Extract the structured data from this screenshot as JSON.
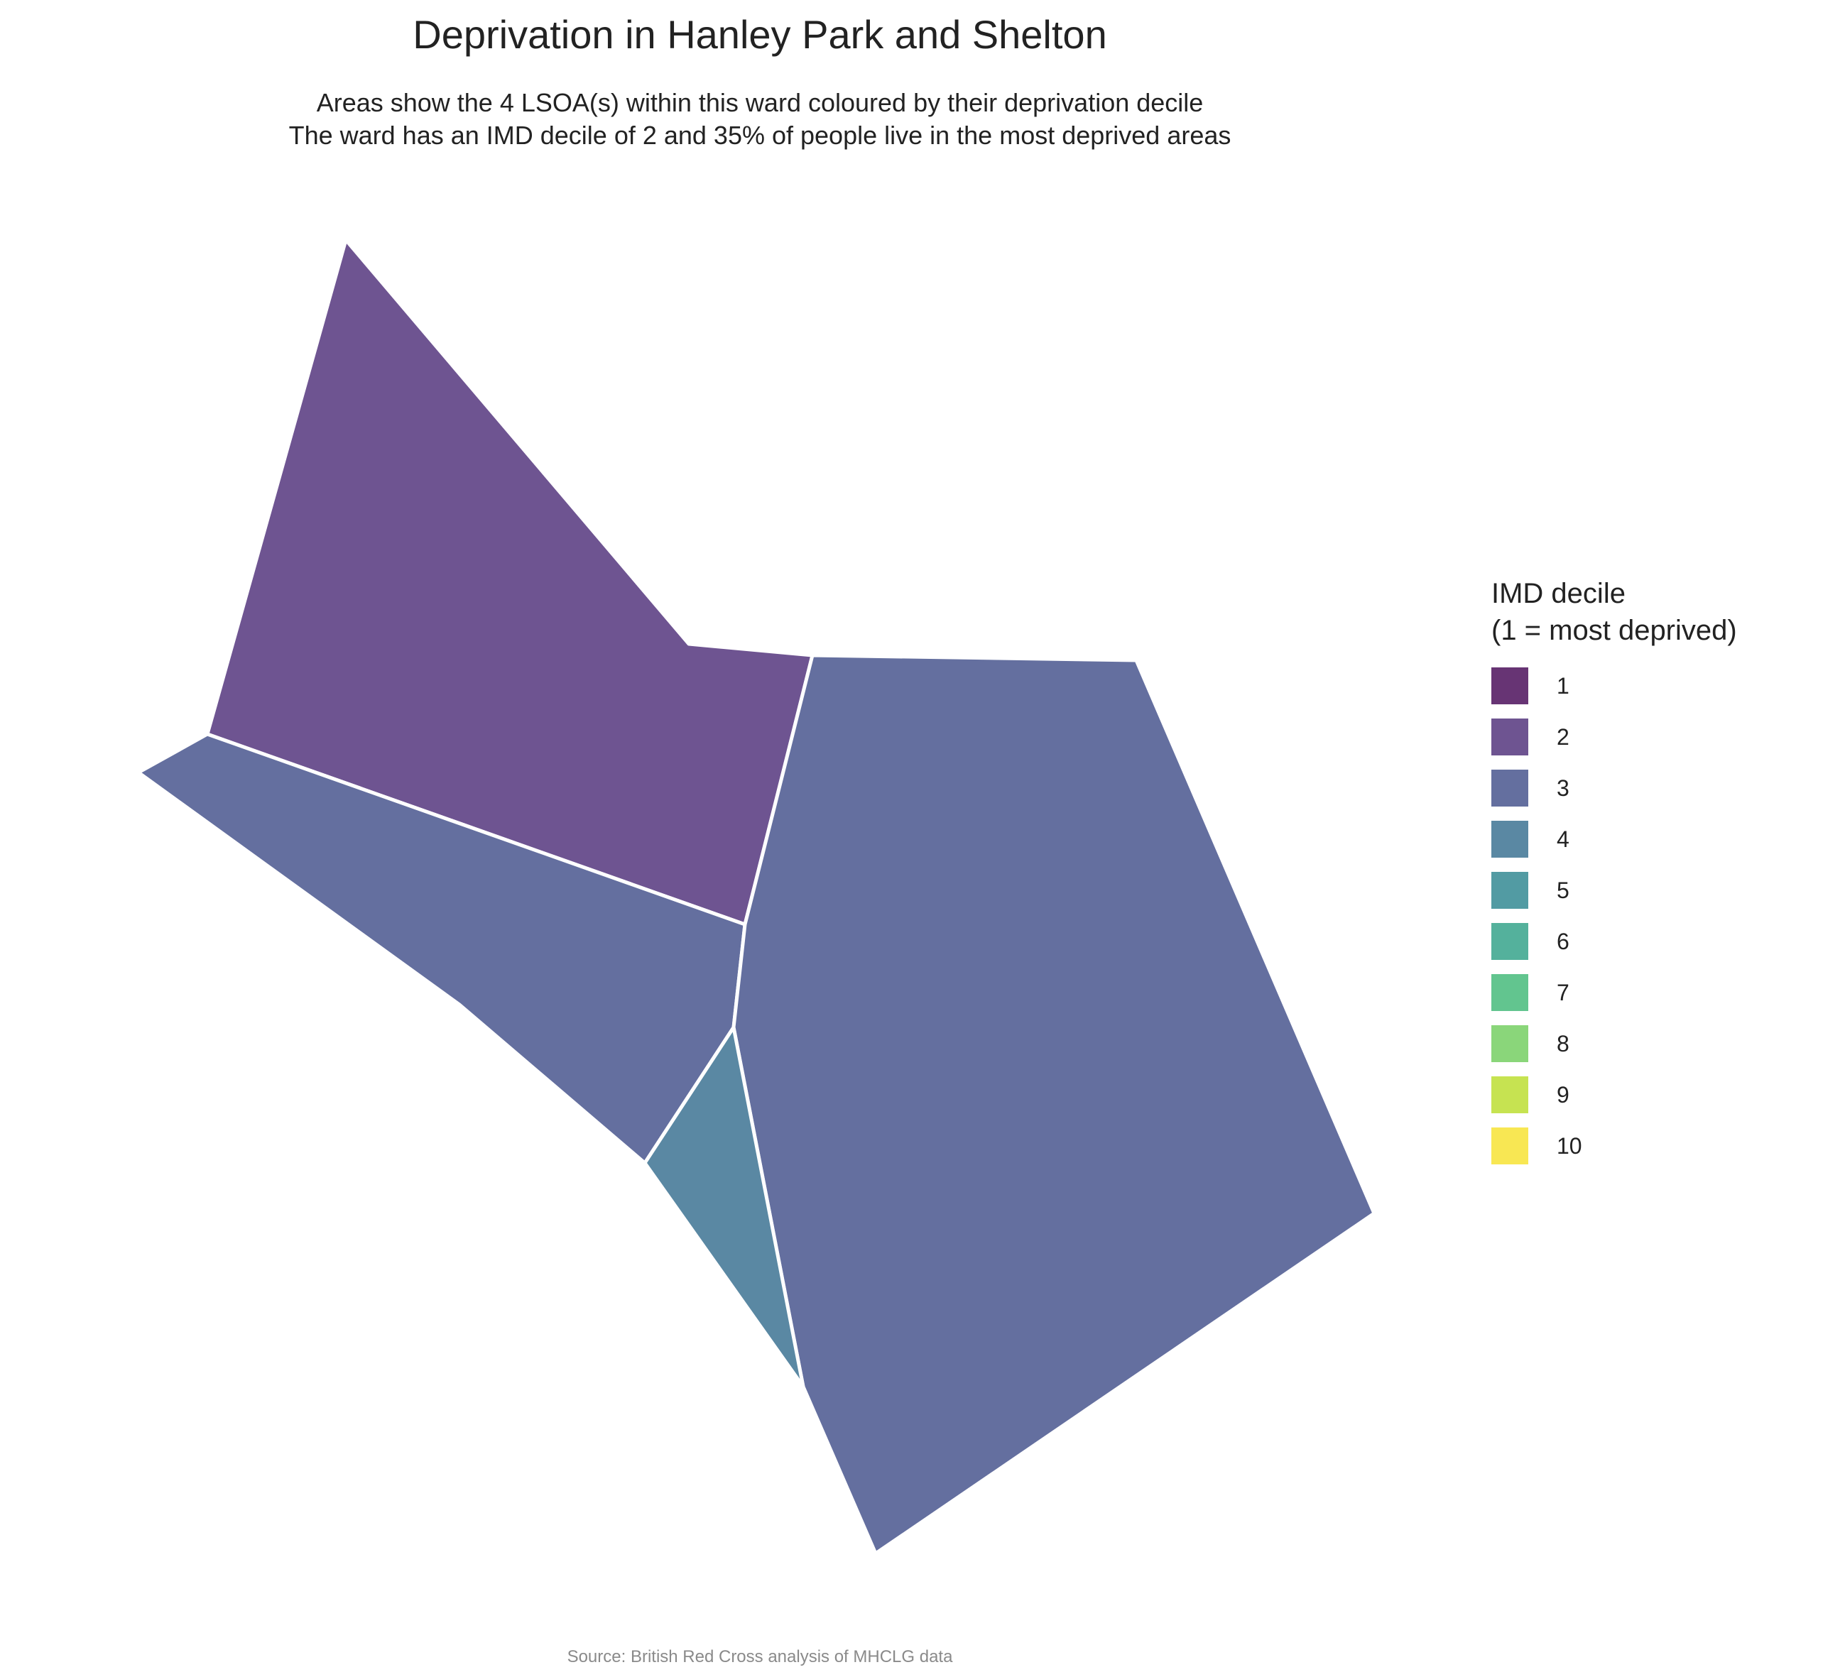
{
  "title": "Deprivation in Hanley Park and Shelton",
  "subtitle_line1": "Areas show the 4 LSOA(s) within this ward coloured by their deprivation decile",
  "subtitle_line2": "The ward has an IMD decile of 2 and 35% of people live in the most deprived areas",
  "legend": {
    "title_line1": "IMD decile",
    "title_line2": "(1 = most deprived)",
    "items": [
      {
        "label": "1",
        "color": "#673474"
      },
      {
        "label": "2",
        "color": "#6e5491"
      },
      {
        "label": "3",
        "color": "#646f9f"
      },
      {
        "label": "4",
        "color": "#5a88a3"
      },
      {
        "label": "5",
        "color": "#529ba3"
      },
      {
        "label": "6",
        "color": "#54b19c"
      },
      {
        "label": "7",
        "color": "#62c58f"
      },
      {
        "label": "8",
        "color": "#8ad67a"
      },
      {
        "label": "9",
        "color": "#c6e351"
      },
      {
        "label": "10",
        "color": "#f8e753"
      }
    ]
  },
  "areas": [
    {
      "name": "north-west LSOA",
      "decile": 2,
      "color": "#6e5491"
    },
    {
      "name": "west LSOA",
      "decile": 3,
      "color": "#646f9f"
    },
    {
      "name": "east LSOA",
      "decile": 3,
      "color": "#646f9f"
    },
    {
      "name": "south LSOA",
      "decile": 4,
      "color": "#5a88a3"
    }
  ],
  "border_color": "#ffffff",
  "caption": "Source: British Red Cross analysis of MHCLG data"
}
